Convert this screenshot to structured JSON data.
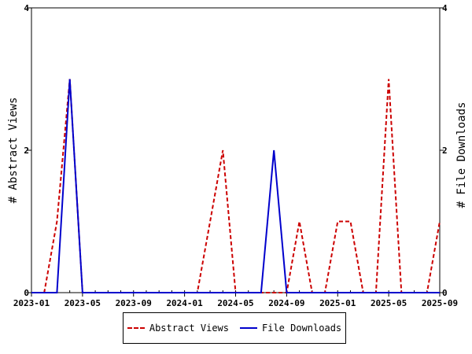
{
  "chart_data": {
    "type": "line",
    "x": [
      "2023-01",
      "2023-02",
      "2023-03",
      "2023-04",
      "2023-05",
      "2023-06",
      "2023-07",
      "2023-08",
      "2023-09",
      "2023-10",
      "2023-11",
      "2023-12",
      "2024-01",
      "2024-02",
      "2024-03",
      "2024-04",
      "2024-05",
      "2024-06",
      "2024-07",
      "2024-08",
      "2024-09",
      "2024-10",
      "2024-11",
      "2024-12",
      "2025-01",
      "2025-02",
      "2025-03",
      "2025-04",
      "2025-05",
      "2025-06",
      "2025-07",
      "2025-08",
      "2025-09"
    ],
    "series": [
      {
        "name": "Abstract Views",
        "color": "#cc0000",
        "style": "dashed",
        "axis": "left",
        "values": [
          0,
          0,
          1,
          3,
          0,
          0,
          0,
          0,
          0,
          0,
          0,
          0,
          0,
          0,
          1,
          2,
          0,
          0,
          0,
          0,
          0,
          1,
          0,
          0,
          1,
          1,
          0,
          0,
          3,
          0,
          0,
          0,
          1
        ]
      },
      {
        "name": "File Downloads",
        "color": "#0000cc",
        "style": "solid",
        "axis": "right",
        "values": [
          0,
          0,
          0,
          3,
          0,
          0,
          0,
          0,
          0,
          0,
          0,
          0,
          0,
          0,
          0,
          0,
          0,
          0,
          0,
          2,
          0,
          0,
          0,
          0,
          0,
          0,
          0,
          0,
          0,
          0,
          0,
          0,
          0
        ]
      }
    ],
    "xticks": [
      "2023-01",
      "2023-05",
      "2023-09",
      "2024-01",
      "2024-05",
      "2024-09",
      "2025-01",
      "2025-05",
      "2025-09"
    ],
    "ylabel": "# Abstract Views",
    "y2label": "# File Downloads",
    "ylim": [
      0,
      4
    ],
    "y2lim": [
      0,
      4
    ],
    "yticks": [
      "0",
      "2",
      "4"
    ],
    "y2ticks": [
      "0",
      "2",
      "4"
    ],
    "legend_position": "bottom-center"
  }
}
